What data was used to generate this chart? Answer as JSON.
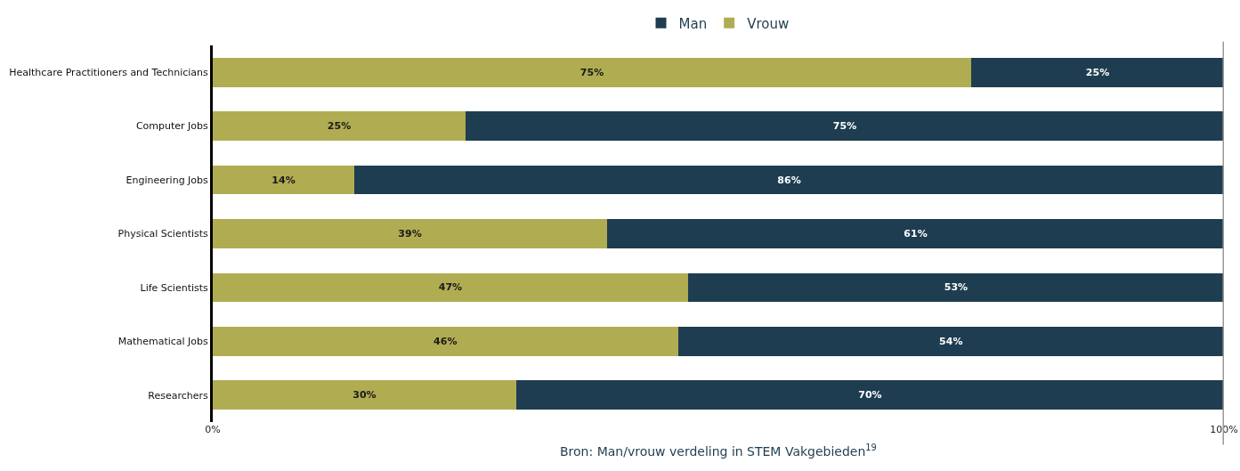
{
  "chart_data": {
    "type": "bar",
    "orientation": "horizontal",
    "stacked": true,
    "categories": [
      "Healthcare Practitioners and Technicians",
      "Computer Jobs",
      "Engineering Jobs",
      "Physical Scientists",
      "Life Scientists",
      "Mathematical Jobs",
      "Researchers"
    ],
    "series": [
      {
        "name": "Vrouw",
        "color": "#b0ac52",
        "values": [
          75,
          25,
          14,
          39,
          47,
          46,
          30
        ],
        "value_labels": [
          "75%",
          "25%",
          "14%",
          "39%",
          "47%",
          "46%",
          "30%"
        ]
      },
      {
        "name": "Man",
        "color": "#1f3d50",
        "values": [
          25,
          75,
          86,
          61,
          53,
          54,
          70
        ],
        "value_labels": [
          "25%",
          "75%",
          "86%",
          "61%",
          "53%",
          "54%",
          "70%"
        ]
      }
    ],
    "xlim": [
      0,
      100
    ],
    "xticks": [
      {
        "value": 0,
        "label": "0%"
      },
      {
        "value": 100,
        "label": "100%"
      }
    ],
    "legend": "top",
    "ref_lines": [
      {
        "axis": "x",
        "value": 100,
        "color": "#999999"
      }
    ],
    "annotations": [
      "Bron: Man/vrouw verdeling in STEM Vakgebieden$^{19}$"
    ]
  }
}
